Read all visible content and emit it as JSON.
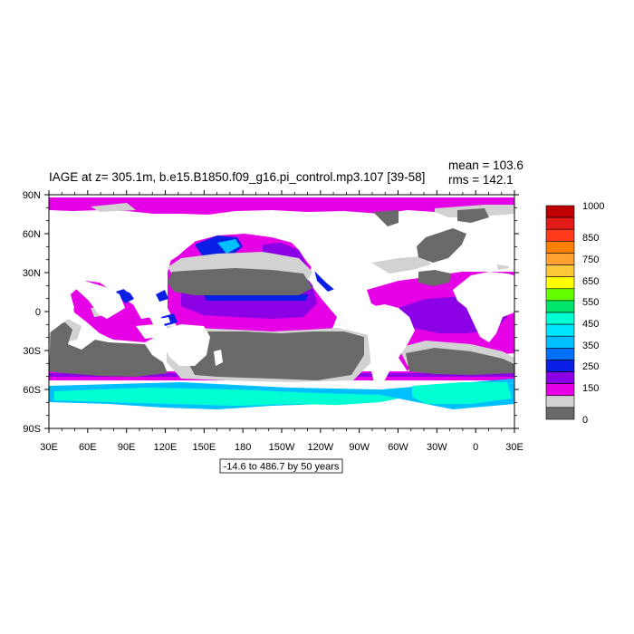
{
  "title": "IAGE at z= 305.1m, b.e15.B1850.f09_g16.pi_control.mp3.107 [39-58]",
  "stats": {
    "mean": "mean = 103.6",
    "rms": "rms = 142.1"
  },
  "range_label": "-14.6 to 486.7 by 50 years",
  "map": {
    "projection": "cylindrical equidistant",
    "lon_ticks": [
      "30E",
      "60E",
      "90E",
      "120E",
      "150E",
      "180",
      "150W",
      "120W",
      "90W",
      "60W",
      "30W",
      "0",
      "30E"
    ],
    "lat_ticks": [
      "90N",
      "60N",
      "30N",
      "0",
      "30S",
      "60S",
      "90S"
    ]
  },
  "colorbar": {
    "labels": [
      "1000",
      "850",
      "750",
      "650",
      "550",
      "450",
      "350",
      "250",
      "150",
      "0"
    ],
    "colors": [
      "#c00000",
      "#e21a1a",
      "#ff3a1a",
      "#ff7f00",
      "#ffa030",
      "#ffc83a",
      "#ffff00",
      "#66ff00",
      "#00e66a",
      "#00ffd2",
      "#00e6ff",
      "#00bfff",
      "#0070ff",
      "#0a1ee6",
      "#8c00e6",
      "#e600e6",
      "#d2d2d2",
      "#696969"
    ]
  }
}
